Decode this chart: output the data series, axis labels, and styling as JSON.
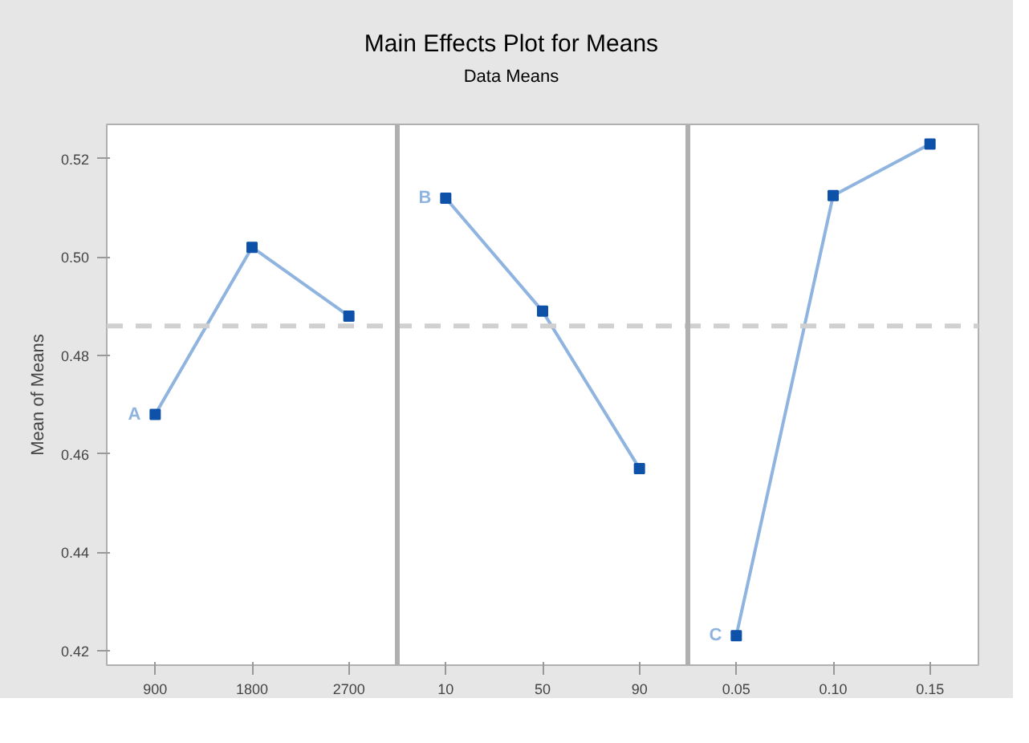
{
  "chart_data": {
    "type": "line",
    "title": "Main Effects Plot for Means",
    "subtitle": "Data Means",
    "ylabel": "Mean of Means",
    "categories": [
      "900",
      "1800",
      "2700",
      "10",
      "50",
      "90",
      "0.05",
      "0.10",
      "0.15"
    ],
    "series": [
      {
        "name": "A",
        "color": "#8fb4e0",
        "values": [
          0.468,
          0.502,
          0.488,
          null,
          null,
          null,
          null,
          null,
          null
        ]
      },
      {
        "name": "B",
        "color": "#8fb4e0",
        "values": [
          null,
          null,
          null,
          0.512,
          0.489,
          0.457,
          null,
          null,
          null
        ]
      },
      {
        "name": "C",
        "color": "#8fb4e0",
        "values": [
          null,
          null,
          null,
          null,
          null,
          null,
          0.423,
          0.5125,
          0.523
        ]
      }
    ],
    "marker": "square",
    "line_style": "solid",
    "ylim": [
      0.417,
      0.527
    ],
    "yticks": [
      {
        "value": 0.42,
        "label": "0.42"
      },
      {
        "value": 0.44,
        "label": "0.44"
      },
      {
        "value": 0.46,
        "label": "0.46"
      },
      {
        "value": 0.48,
        "label": "0.48"
      },
      {
        "value": 0.5,
        "label": "0.50"
      },
      {
        "value": 0.52,
        "label": "0.52"
      }
    ],
    "ref_lines": [
      {
        "axis": "y",
        "value": 0.486,
        "color": "#d0d0d0",
        "line_style": "dashed"
      }
    ],
    "grid": false
  }
}
